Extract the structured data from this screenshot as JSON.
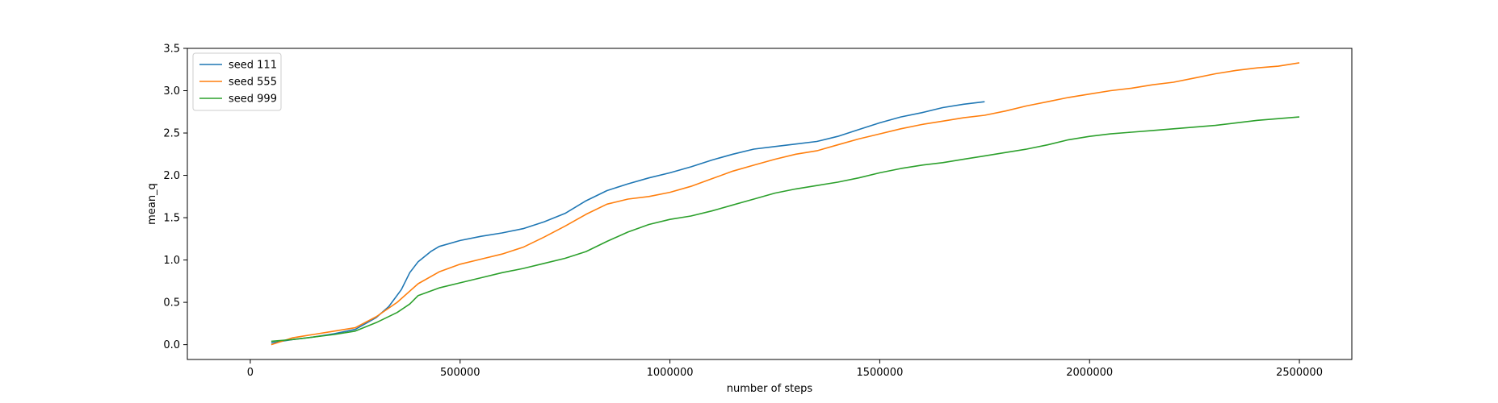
{
  "chart_data": {
    "type": "line",
    "title": "",
    "xlabel": "number of steps",
    "ylabel": "mean_q",
    "xlim": [
      -150000,
      2625000
    ],
    "ylim": [
      -0.175,
      3.5
    ],
    "xticks": [
      0,
      500000,
      1000000,
      1500000,
      2000000,
      2500000
    ],
    "xtick_labels": [
      "0",
      "500000",
      "1000000",
      "1500000",
      "2000000",
      "2500000"
    ],
    "yticks": [
      0.0,
      0.5,
      1.0,
      1.5,
      2.0,
      2.5,
      3.0,
      3.5
    ],
    "ytick_labels": [
      "0.0",
      "0.5",
      "1.0",
      "1.5",
      "2.0",
      "2.5",
      "3.0",
      "3.5"
    ],
    "grid": false,
    "legend": "top-left",
    "series": [
      {
        "name": "seed 111",
        "color": "#1f77b4",
        "x": [
          50000,
          100000,
          150000,
          200000,
          250000,
          300000,
          330000,
          360000,
          380000,
          400000,
          430000,
          450000,
          500000,
          550000,
          600000,
          650000,
          700000,
          750000,
          800000,
          850000,
          900000,
          950000,
          1000000,
          1050000,
          1100000,
          1150000,
          1200000,
          1250000,
          1300000,
          1350000,
          1400000,
          1450000,
          1500000,
          1550000,
          1600000,
          1650000,
          1700000,
          1750000
        ],
        "y": [
          0.02,
          0.06,
          0.09,
          0.13,
          0.18,
          0.32,
          0.45,
          0.65,
          0.85,
          0.98,
          1.1,
          1.16,
          1.23,
          1.28,
          1.32,
          1.37,
          1.45,
          1.55,
          1.7,
          1.82,
          1.9,
          1.97,
          2.03,
          2.1,
          2.18,
          2.25,
          2.31,
          2.34,
          2.37,
          2.4,
          2.46,
          2.54,
          2.62,
          2.69,
          2.74,
          2.8,
          2.84,
          2.87
        ]
      },
      {
        "name": "seed 555",
        "color": "#ff7f0e",
        "x": [
          50000,
          100000,
          150000,
          200000,
          250000,
          300000,
          350000,
          400000,
          450000,
          500000,
          550000,
          600000,
          650000,
          700000,
          750000,
          800000,
          850000,
          900000,
          950000,
          1000000,
          1050000,
          1100000,
          1150000,
          1200000,
          1250000,
          1300000,
          1350000,
          1400000,
          1450000,
          1500000,
          1550000,
          1600000,
          1650000,
          1700000,
          1750000,
          1800000,
          1850000,
          1900000,
          1950000,
          2000000,
          2050000,
          2100000,
          2150000,
          2200000,
          2250000,
          2300000,
          2350000,
          2400000,
          2450000,
          2500000
        ],
        "y": [
          0.0,
          0.08,
          0.12,
          0.16,
          0.2,
          0.33,
          0.5,
          0.72,
          0.86,
          0.95,
          1.01,
          1.07,
          1.15,
          1.27,
          1.4,
          1.54,
          1.66,
          1.72,
          1.75,
          1.8,
          1.87,
          1.96,
          2.05,
          2.12,
          2.19,
          2.25,
          2.29,
          2.36,
          2.43,
          2.49,
          2.55,
          2.6,
          2.64,
          2.68,
          2.71,
          2.76,
          2.82,
          2.87,
          2.92,
          2.96,
          3.0,
          3.03,
          3.07,
          3.1,
          3.15,
          3.2,
          3.24,
          3.27,
          3.29,
          3.33
        ]
      },
      {
        "name": "seed 999",
        "color": "#2ca02c",
        "x": [
          50000,
          100000,
          150000,
          200000,
          250000,
          300000,
          350000,
          380000,
          400000,
          450000,
          500000,
          550000,
          600000,
          650000,
          700000,
          750000,
          800000,
          850000,
          900000,
          950000,
          1000000,
          1050000,
          1100000,
          1150000,
          1200000,
          1250000,
          1300000,
          1350000,
          1400000,
          1450000,
          1500000,
          1550000,
          1600000,
          1650000,
          1700000,
          1750000,
          1800000,
          1850000,
          1900000,
          1950000,
          2000000,
          2050000,
          2100000,
          2150000,
          2200000,
          2250000,
          2300000,
          2350000,
          2400000,
          2450000,
          2500000
        ],
        "y": [
          0.04,
          0.06,
          0.09,
          0.12,
          0.16,
          0.26,
          0.38,
          0.48,
          0.58,
          0.67,
          0.73,
          0.79,
          0.85,
          0.9,
          0.96,
          1.02,
          1.1,
          1.22,
          1.33,
          1.42,
          1.48,
          1.52,
          1.58,
          1.65,
          1.72,
          1.79,
          1.84,
          1.88,
          1.92,
          1.97,
          2.03,
          2.08,
          2.12,
          2.15,
          2.19,
          2.23,
          2.27,
          2.31,
          2.36,
          2.42,
          2.46,
          2.49,
          2.51,
          2.53,
          2.55,
          2.57,
          2.59,
          2.62,
          2.65,
          2.67,
          2.69
        ]
      }
    ]
  }
}
